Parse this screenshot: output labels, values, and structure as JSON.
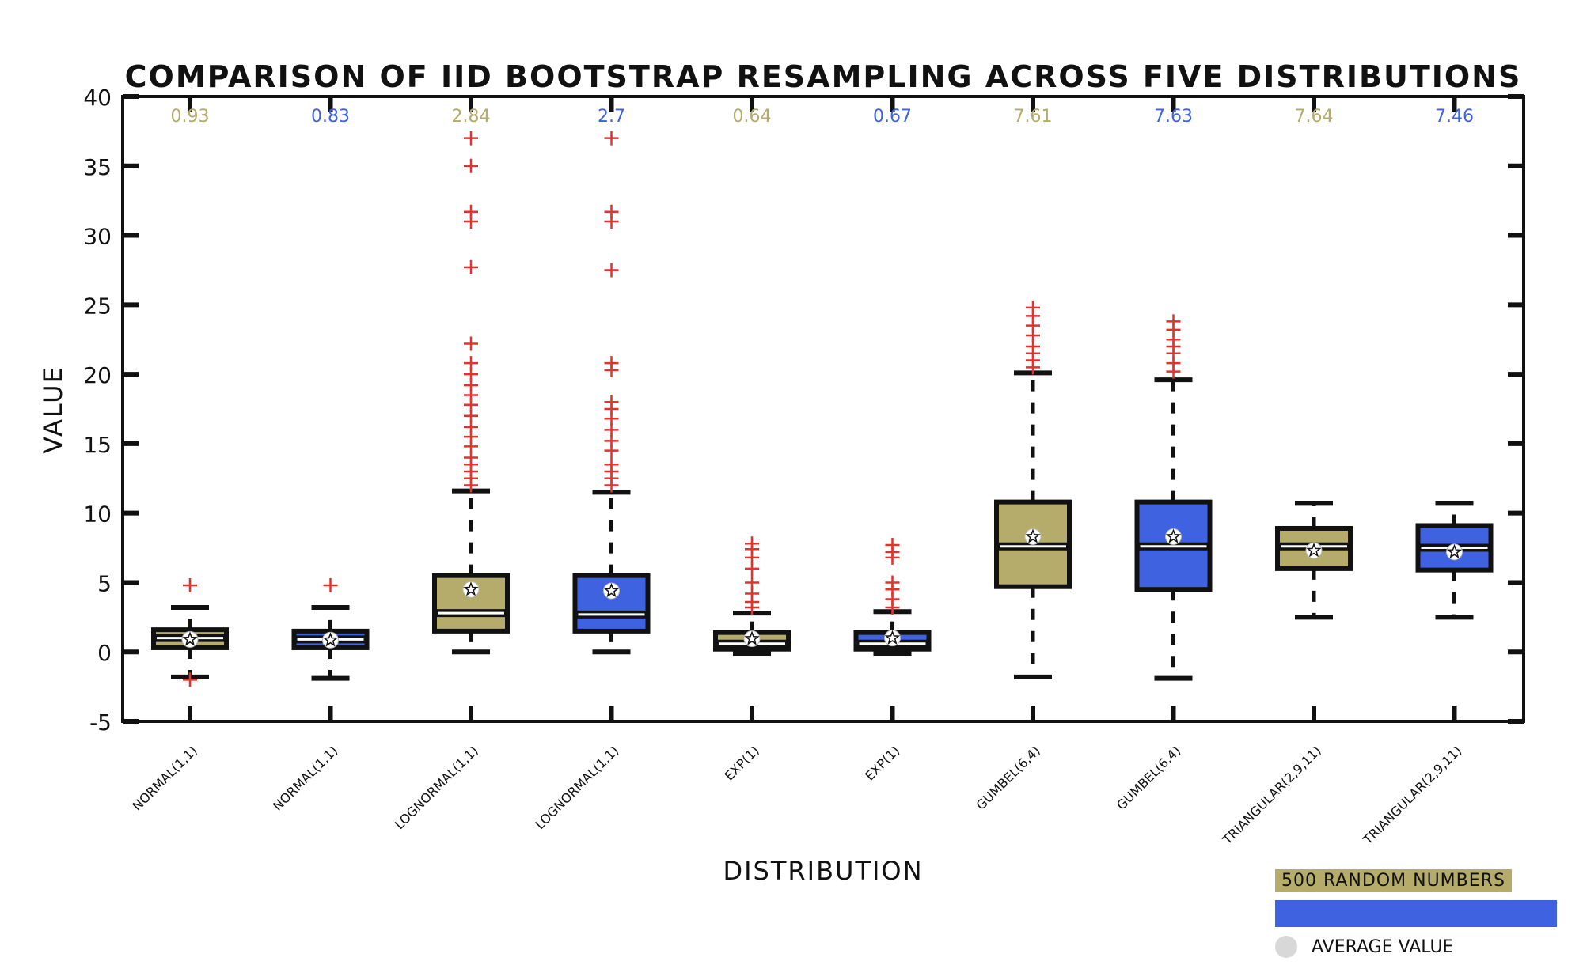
{
  "chart_data": {
    "type": "box",
    "title": "COMPARISON OF IID BOOTSTRAP RESAMPLING ACROSS FIVE DISTRIBUTIONS",
    "xlabel": "DISTRIBUTION",
    "ylabel": "VALUE",
    "ylim": [
      -5,
      40
    ],
    "yticks": [
      -5,
      0,
      5,
      10,
      15,
      20,
      25,
      30,
      35,
      40
    ],
    "grid": false,
    "legend_placement": "bottom-right",
    "colors": {
      "random": "#b5ab6a",
      "bootstrap": "#3f62e0",
      "outlier": "#e3322e",
      "box_edge": "#111111"
    },
    "categories": [
      "NORMAL(1,1)",
      "NORMAL(1,1)",
      "LOGNORMAL(1,1)",
      "LOGNORMAL(1,1)",
      "EXP(1)",
      "EXP(1)",
      "GUMBEL(6,4)",
      "GUMBEL(6,4)",
      "TRIANGULAR(2,9,11)",
      "TRIANGULAR(2,9,11)"
    ],
    "top_labels": [
      "0.93",
      "0.83",
      "2.84",
      "2.7",
      "0.64",
      "0.67",
      "7.61",
      "7.63",
      "7.64",
      "7.46"
    ],
    "boxes": [
      {
        "group": "random",
        "whisker_low": -1.8,
        "q1": 0.3,
        "median": 1.0,
        "q3": 1.6,
        "whisker_high": 3.2,
        "mean": 0.9,
        "outliers": [
          4.8,
          -2.0
        ]
      },
      {
        "group": "bootstrap",
        "whisker_low": -1.9,
        "q1": 0.3,
        "median": 0.9,
        "q3": 1.5,
        "whisker_high": 3.2,
        "mean": 0.85,
        "outliers": [
          4.8
        ]
      },
      {
        "group": "random",
        "whisker_low": 0.0,
        "q1": 1.5,
        "median": 2.8,
        "q3": 5.5,
        "whisker_high": 11.6,
        "mean": 4.5,
        "outliers": [
          12.0,
          12.5,
          13.0,
          13.5,
          14.0,
          14.8,
          15.5,
          16.2,
          17.0,
          17.8,
          18.5,
          19.2,
          20.0,
          20.8,
          22.2,
          27.7,
          31.0,
          31.7,
          35.0,
          37.0
        ]
      },
      {
        "group": "bootstrap",
        "whisker_low": 0.0,
        "q1": 1.5,
        "median": 2.7,
        "q3": 5.5,
        "whisker_high": 11.5,
        "mean": 4.4,
        "outliers": [
          12.0,
          12.5,
          13.0,
          13.5,
          14.5,
          15.2,
          16.0,
          16.8,
          17.5,
          18.0,
          20.3,
          20.8,
          27.5,
          31.0,
          31.7,
          37.0
        ]
      },
      {
        "group": "random",
        "whisker_low": -0.1,
        "q1": 0.2,
        "median": 0.6,
        "q3": 1.4,
        "whisker_high": 2.8,
        "mean": 0.95,
        "outliers": [
          3.2,
          3.6,
          4.2,
          5.0,
          6.0,
          6.8,
          7.4,
          7.8
        ]
      },
      {
        "group": "bootstrap",
        "whisker_low": -0.1,
        "q1": 0.2,
        "median": 0.6,
        "q3": 1.4,
        "whisker_high": 2.9,
        "mean": 1.0,
        "outliers": [
          3.2,
          3.8,
          4.5,
          5.0,
          6.8,
          7.2,
          7.7
        ]
      },
      {
        "group": "random",
        "whisker_low": -1.8,
        "q1": 4.7,
        "median": 7.6,
        "q3": 10.8,
        "whisker_high": 20.1,
        "mean": 8.3,
        "outliers": [
          20.5,
          21.0,
          21.5,
          22.0,
          22.8,
          23.5,
          24.2,
          24.8
        ]
      },
      {
        "group": "bootstrap",
        "whisker_low": -1.9,
        "q1": 4.5,
        "median": 7.6,
        "q3": 10.8,
        "whisker_high": 19.6,
        "mean": 8.3,
        "outliers": [
          20.2,
          20.8,
          21.5,
          22.0,
          22.5,
          23.2,
          23.8
        ]
      },
      {
        "group": "random",
        "whisker_low": 2.5,
        "q1": 6.0,
        "median": 7.6,
        "q3": 8.9,
        "whisker_high": 10.7,
        "mean": 7.3,
        "outliers": []
      },
      {
        "group": "bootstrap",
        "whisker_low": 2.5,
        "q1": 5.9,
        "median": 7.5,
        "q3": 9.1,
        "whisker_high": 10.7,
        "mean": 7.2,
        "outliers": []
      }
    ],
    "legend": [
      {
        "label": "500 RANDOM NUMBERS",
        "color": "#b5ab6a"
      },
      {
        "label": "",
        "color": "#3f62e0"
      },
      {
        "label": "AVERAGE VALUE",
        "color": "#d8d8d8"
      }
    ]
  }
}
